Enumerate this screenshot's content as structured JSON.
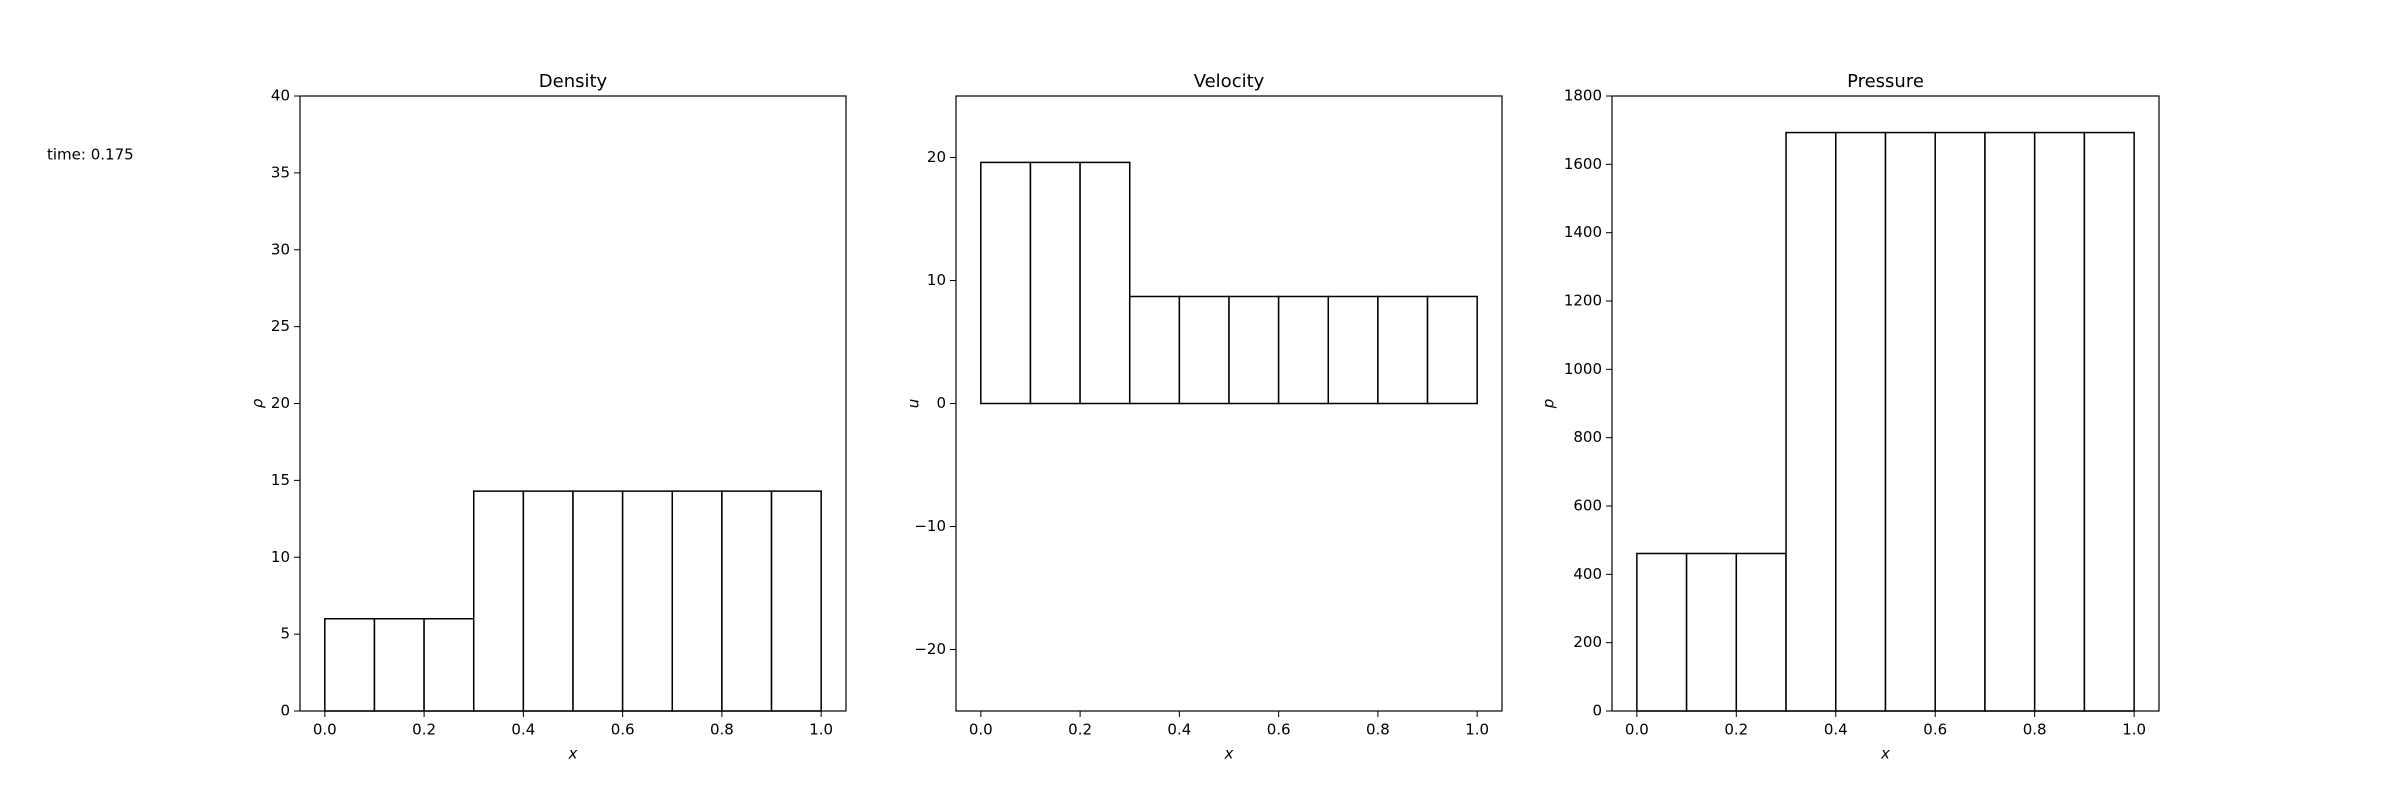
{
  "annotation": "time: 0.175",
  "chart_data": [
    {
      "type": "histogram",
      "title": "Density",
      "xlabel": "x",
      "ylabel": "ρ",
      "bins": [
        0.0,
        0.1,
        0.2,
        0.3,
        0.4,
        0.5,
        0.6,
        0.7,
        0.8,
        0.9,
        1.0
      ],
      "values": [
        6.0,
        6.0,
        6.0,
        14.3,
        14.3,
        14.3,
        14.3,
        14.3,
        14.3,
        14.3
      ],
      "color": "#ffffff",
      "edgecolor": "#000000",
      "xlim": [
        -0.05,
        1.05
      ],
      "xticks": [
        {
          "value": 0,
          "label": "0.0"
        },
        0.2,
        0.4,
        0.6,
        0.8,
        {
          "value": 1,
          "label": "1.0"
        }
      ],
      "ylim": [
        0,
        40
      ],
      "yticks": [
        0,
        5,
        10,
        15,
        20,
        25,
        30,
        35,
        40
      ]
    },
    {
      "type": "histogram",
      "title": "Velocity",
      "xlabel": "x",
      "ylabel": "u",
      "bins": [
        0.0,
        0.1,
        0.2,
        0.3,
        0.4,
        0.5,
        0.6,
        0.7,
        0.8,
        0.9,
        1.0
      ],
      "values": [
        19.6,
        19.6,
        19.6,
        8.7,
        8.7,
        8.7,
        8.7,
        8.7,
        8.7,
        8.7
      ],
      "color": "#ffffff",
      "edgecolor": "#000000",
      "xlim": [
        -0.05,
        1.05
      ],
      "xticks": [
        {
          "value": 0,
          "label": "0.0"
        },
        0.2,
        0.4,
        0.6,
        0.8,
        {
          "value": 1,
          "label": "1.0"
        }
      ],
      "ylim": [
        -25,
        25
      ],
      "yticks": [
        {
          "value": -20,
          "label": "−20"
        },
        {
          "value": -10,
          "label": "−10"
        },
        0,
        10,
        20
      ]
    },
    {
      "type": "histogram",
      "title": "Pressure",
      "xlabel": "x",
      "ylabel": "p",
      "bins": [
        0.0,
        0.1,
        0.2,
        0.3,
        0.4,
        0.5,
        0.6,
        0.7,
        0.8,
        0.9,
        1.0
      ],
      "values": [
        461,
        461,
        461,
        1693,
        1693,
        1693,
        1693,
        1693,
        1693,
        1693
      ],
      "color": "#ffffff",
      "edgecolor": "#000000",
      "xlim": [
        -0.05,
        1.05
      ],
      "xticks": [
        {
          "value": 0,
          "label": "0.0"
        },
        0.2,
        0.4,
        0.6,
        0.8,
        {
          "value": 1,
          "label": "1.0"
        }
      ],
      "ylim": [
        0,
        1800
      ],
      "yticks": [
        0,
        200,
        400,
        600,
        800,
        1000,
        1200,
        1400,
        1600,
        1800
      ]
    }
  ]
}
